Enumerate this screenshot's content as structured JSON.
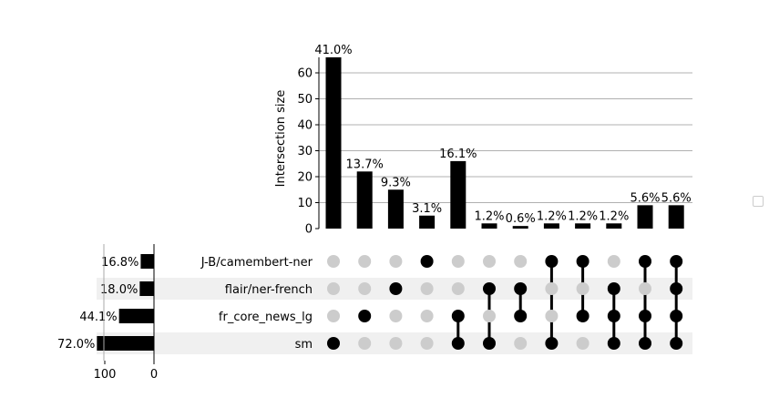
{
  "chart_data": {
    "type": "upset",
    "sets": [
      "J-B/camembert-ner",
      "flair/ner-french",
      "fr_core_news_lg",
      "sm"
    ],
    "set_size_percent_labels": [
      "16.8%",
      "18.0%",
      "44.1%",
      "72.0%"
    ],
    "set_sizes": [
      27,
      29,
      71,
      116
    ],
    "set_size_axis": {
      "ticks": [
        "100",
        "0"
      ]
    },
    "intersections": [
      {
        "members": [
          0,
          0,
          0,
          1
        ],
        "value": 66,
        "label": "41.0%"
      },
      {
        "members": [
          0,
          0,
          1,
          0
        ],
        "value": 22,
        "label": "13.7%"
      },
      {
        "members": [
          0,
          1,
          0,
          0
        ],
        "value": 15,
        "label": "9.3%"
      },
      {
        "members": [
          1,
          0,
          0,
          0
        ],
        "value": 5,
        "label": "3.1%"
      },
      {
        "members": [
          0,
          0,
          1,
          1
        ],
        "value": 26,
        "label": "16.1%"
      },
      {
        "members": [
          0,
          1,
          0,
          1
        ],
        "value": 2,
        "label": "1.2%"
      },
      {
        "members": [
          0,
          1,
          1,
          0
        ],
        "value": 1,
        "label": "0.6%"
      },
      {
        "members": [
          1,
          0,
          0,
          1
        ],
        "value": 2,
        "label": "1.2%"
      },
      {
        "members": [
          1,
          0,
          1,
          0
        ],
        "value": 2,
        "label": "1.2%"
      },
      {
        "members": [
          0,
          1,
          1,
          1
        ],
        "value": 2,
        "label": "1.2%"
      },
      {
        "members": [
          1,
          0,
          1,
          1
        ],
        "value": 9,
        "label": "5.6%"
      },
      {
        "members": [
          1,
          1,
          1,
          1
        ],
        "value": 9,
        "label": "5.6%"
      }
    ],
    "ylabel": "Intersection size",
    "yticks": [
      0,
      10,
      20,
      30,
      40,
      50,
      60
    ],
    "ylim": [
      0,
      66
    ],
    "grid": true,
    "colors": {
      "bar": "#000000",
      "dot_active": "#000000",
      "dot_inactive": "#cccccc",
      "stripe": "#f0f0f0",
      "grid": "#b0b0b0"
    }
  }
}
